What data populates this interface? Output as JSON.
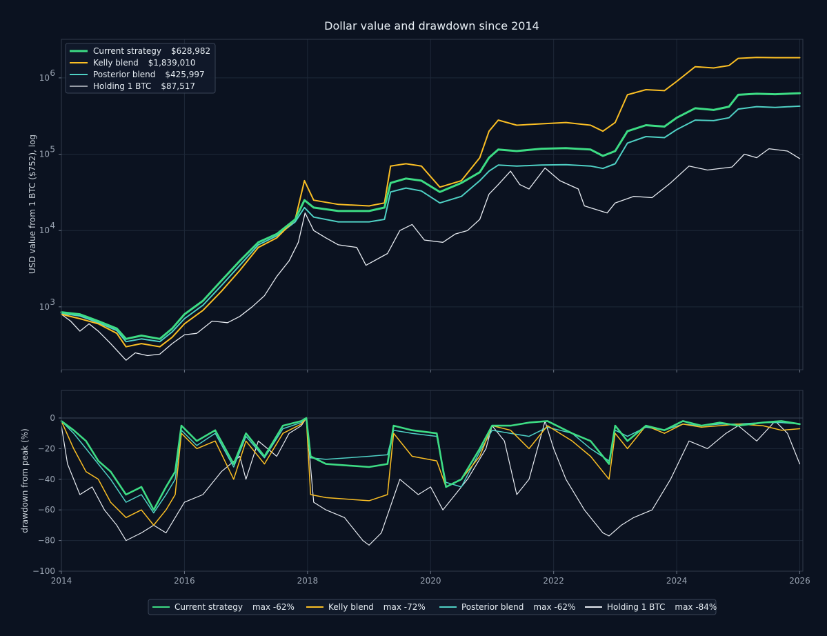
{
  "title": "Dollar value and drawdown since 2014",
  "colors": {
    "background": "#0b1220",
    "panel_border": "#30394a",
    "grid": "#1e2838",
    "current": "#3ddc84",
    "kelly": "#fbbf24",
    "posterior": "#4fd1c5",
    "hodl": "#e8ecf2"
  },
  "chart_data": [
    {
      "type": "line",
      "title": "Dollar value and drawdown since 2014",
      "ylabel": "USD value from 1 BTC ($752), log",
      "yscale": "log",
      "ylim": [
        150,
        3200000
      ],
      "xlim": [
        2014.0,
        2026.05
      ],
      "y_ticks": [
        {
          "value": 1000,
          "base": "10",
          "exp": "3"
        },
        {
          "value": 10000,
          "base": "10",
          "exp": "4"
        },
        {
          "value": 100000,
          "base": "10",
          "exp": "5"
        },
        {
          "value": 1000000,
          "base": "10",
          "exp": "6"
        }
      ],
      "grid": true,
      "legend_position": "top-left",
      "series": [
        {
          "key": "current",
          "name": "Current strategy",
          "final_value": "$628,982",
          "width": 3,
          "x": [
            2014.0,
            2014.3,
            2014.6,
            2014.9,
            2015.05,
            2015.3,
            2015.6,
            2015.8,
            2016.0,
            2016.3,
            2016.6,
            2016.9,
            2017.2,
            2017.5,
            2017.8,
            2017.95,
            2018.1,
            2018.5,
            2019.0,
            2019.25,
            2019.35,
            2019.6,
            2019.85,
            2020.15,
            2020.5,
            2020.8,
            2020.95,
            2021.1,
            2021.4,
            2021.8,
            2022.2,
            2022.6,
            2022.8,
            2023.0,
            2023.2,
            2023.5,
            2023.8,
            2024.0,
            2024.3,
            2024.6,
            2024.85,
            2025.0,
            2025.3,
            2025.6,
            2026.0
          ],
          "y": [
            850,
            800,
            650,
            520,
            380,
            420,
            380,
            520,
            800,
            1200,
            2200,
            4000,
            7000,
            9000,
            14000,
            25000,
            20000,
            18000,
            18000,
            20000,
            42000,
            48000,
            45000,
            32000,
            42000,
            58000,
            90000,
            115000,
            110000,
            118000,
            120000,
            115000,
            95000,
            110000,
            200000,
            240000,
            230000,
            300000,
            400000,
            380000,
            420000,
            600000,
            620000,
            610000,
            630000
          ]
        },
        {
          "key": "kelly",
          "name": "Kelly blend",
          "final_value": "$1,839,010",
          "width": 2,
          "x": [
            2014.0,
            2014.3,
            2014.6,
            2014.9,
            2015.05,
            2015.3,
            2015.6,
            2015.8,
            2016.0,
            2016.3,
            2016.6,
            2016.9,
            2017.2,
            2017.5,
            2017.8,
            2017.95,
            2018.1,
            2018.5,
            2019.0,
            2019.25,
            2019.35,
            2019.6,
            2019.85,
            2020.15,
            2020.5,
            2020.8,
            2020.95,
            2021.1,
            2021.4,
            2021.8,
            2022.2,
            2022.6,
            2022.8,
            2023.0,
            2023.2,
            2023.5,
            2023.8,
            2024.0,
            2024.3,
            2024.6,
            2024.85,
            2025.0,
            2025.3,
            2025.6,
            2026.0
          ],
          "y": [
            800,
            700,
            600,
            450,
            300,
            330,
            300,
            400,
            600,
            900,
            1600,
            3000,
            6000,
            8000,
            14000,
            45000,
            25000,
            22000,
            21000,
            23000,
            70000,
            75000,
            70000,
            37000,
            45000,
            90000,
            200000,
            280000,
            240000,
            250000,
            260000,
            240000,
            200000,
            260000,
            600000,
            700000,
            680000,
            900000,
            1400000,
            1350000,
            1450000,
            1800000,
            1850000,
            1840000,
            1840000
          ]
        },
        {
          "key": "posterior",
          "name": "Posterior blend",
          "final_value": "$425,997",
          "width": 2,
          "x": [
            2014.0,
            2014.3,
            2014.6,
            2014.9,
            2015.05,
            2015.3,
            2015.6,
            2015.8,
            2016.0,
            2016.3,
            2016.6,
            2016.9,
            2017.2,
            2017.5,
            2017.8,
            2017.95,
            2018.1,
            2018.5,
            2019.0,
            2019.25,
            2019.35,
            2019.6,
            2019.85,
            2020.15,
            2020.5,
            2020.8,
            2020.95,
            2021.1,
            2021.4,
            2021.8,
            2022.2,
            2022.6,
            2022.8,
            2023.0,
            2023.2,
            2023.5,
            2023.8,
            2024.0,
            2024.3,
            2024.6,
            2024.85,
            2025.0,
            2025.3,
            2025.6,
            2026.0
          ],
          "y": [
            820,
            760,
            620,
            490,
            350,
            380,
            350,
            470,
            700,
            1050,
            1900,
            3500,
            6500,
            8500,
            13000,
            20000,
            15000,
            13000,
            13000,
            14000,
            32000,
            36000,
            33000,
            23000,
            28000,
            45000,
            60000,
            72000,
            70000,
            72000,
            73000,
            70000,
            65000,
            75000,
            140000,
            170000,
            165000,
            210000,
            280000,
            275000,
            300000,
            390000,
            420000,
            410000,
            426000
          ]
        },
        {
          "key": "hodl",
          "name": "Holding 1 BTC",
          "final_value": "$87,517",
          "width": 1.3,
          "x": [
            2014.0,
            2014.15,
            2014.3,
            2014.45,
            2014.6,
            2014.8,
            2015.05,
            2015.2,
            2015.4,
            2015.6,
            2015.8,
            2016.0,
            2016.2,
            2016.45,
            2016.7,
            2016.9,
            2017.1,
            2017.3,
            2017.5,
            2017.7,
            2017.85,
            2017.96,
            2018.1,
            2018.3,
            2018.5,
            2018.8,
            2018.95,
            2019.3,
            2019.5,
            2019.7,
            2019.9,
            2020.2,
            2020.4,
            2020.6,
            2020.8,
            2020.95,
            2021.1,
            2021.3,
            2021.45,
            2021.6,
            2021.86,
            2022.1,
            2022.4,
            2022.5,
            2022.87,
            2023.0,
            2023.3,
            2023.6,
            2023.9,
            2024.2,
            2024.5,
            2024.9,
            2025.1,
            2025.3,
            2025.5,
            2025.8,
            2026.0
          ],
          "y": [
            800,
            650,
            480,
            600,
            480,
            330,
            200,
            250,
            230,
            240,
            330,
            430,
            450,
            650,
            620,
            750,
            1000,
            1400,
            2500,
            4000,
            7000,
            17000,
            10000,
            8000,
            6500,
            6000,
            3500,
            5000,
            10000,
            12000,
            7500,
            7000,
            9000,
            10000,
            14000,
            30000,
            40000,
            60000,
            40000,
            35000,
            66000,
            45000,
            35000,
            21000,
            17000,
            23000,
            28000,
            27000,
            42000,
            70000,
            62000,
            68000,
            100000,
            90000,
            118000,
            110000,
            87517
          ]
        }
      ]
    },
    {
      "type": "line",
      "ylabel": "drawdown from peak (%)",
      "ylim": [
        -100,
        18
      ],
      "xlim": [
        2014.0,
        2026.05
      ],
      "y_ticks": [
        0,
        -20,
        -40,
        -60,
        -80,
        -100
      ],
      "x_ticks": [
        "2014",
        "2016",
        "2018",
        "2020",
        "2022",
        "2024",
        "2026"
      ],
      "x_tick_values": [
        2014,
        2016,
        2018,
        2020,
        2022,
        2024,
        2026
      ],
      "grid": true,
      "legend_position": "bottom-center",
      "series": [
        {
          "key": "current",
          "name": "Current strategy",
          "max_label": "max -62%",
          "width": 2.6,
          "x": [
            2014.0,
            2014.2,
            2014.4,
            2014.6,
            2014.8,
            2015.05,
            2015.3,
            2015.5,
            2015.7,
            2015.85,
            2015.95,
            2016.2,
            2016.5,
            2016.8,
            2017.0,
            2017.3,
            2017.6,
            2017.9,
            2017.98,
            2018.05,
            2018.3,
            2019.0,
            2019.3,
            2019.4,
            2019.7,
            2020.1,
            2020.25,
            2020.5,
            2020.8,
            2021.0,
            2021.3,
            2021.6,
            2021.9,
            2022.3,
            2022.6,
            2022.9,
            2023.0,
            2023.2,
            2023.5,
            2023.8,
            2024.1,
            2024.4,
            2024.7,
            2025.0,
            2025.4,
            2025.7,
            2026.0
          ],
          "y": [
            -2,
            -8,
            -15,
            -28,
            -35,
            -50,
            -45,
            -60,
            -45,
            -35,
            -5,
            -15,
            -8,
            -30,
            -10,
            -25,
            -5,
            -2,
            0,
            -25,
            -30,
            -32,
            -30,
            -5,
            -8,
            -10,
            -45,
            -40,
            -20,
            -5,
            -5,
            -3,
            -2,
            -10,
            -15,
            -30,
            -5,
            -15,
            -5,
            -8,
            -2,
            -5,
            -3,
            -5,
            -3,
            -2,
            -4
          ]
        },
        {
          "key": "kelly",
          "name": "Kelly blend",
          "max_label": "max -72%",
          "width": 1.5,
          "x": [
            2014.0,
            2014.2,
            2014.4,
            2014.6,
            2014.8,
            2015.05,
            2015.3,
            2015.5,
            2015.7,
            2015.85,
            2015.95,
            2016.2,
            2016.5,
            2016.8,
            2017.0,
            2017.3,
            2017.6,
            2017.9,
            2017.98,
            2018.05,
            2018.3,
            2019.0,
            2019.3,
            2019.4,
            2019.7,
            2020.1,
            2020.25,
            2020.5,
            2020.8,
            2021.0,
            2021.3,
            2021.6,
            2021.9,
            2022.3,
            2022.6,
            2022.9,
            2023.0,
            2023.2,
            2023.5,
            2023.8,
            2024.1,
            2024.4,
            2024.7,
            2025.0,
            2025.4,
            2025.7,
            2026.0
          ],
          "y": [
            -2,
            -20,
            -35,
            -40,
            -55,
            -65,
            -60,
            -70,
            -60,
            -50,
            -10,
            -20,
            -15,
            -40,
            -15,
            -30,
            -10,
            -4,
            0,
            -50,
            -52,
            -54,
            -50,
            -10,
            -25,
            -28,
            -45,
            -40,
            -25,
            -5,
            -8,
            -20,
            -5,
            -15,
            -25,
            -40,
            -10,
            -20,
            -5,
            -10,
            -4,
            -6,
            -5,
            -4,
            -5,
            -8,
            -7
          ]
        },
        {
          "key": "posterior",
          "name": "Posterior blend",
          "max_label": "max -62%",
          "width": 1.5,
          "x": [
            2014.0,
            2014.2,
            2014.4,
            2014.6,
            2014.8,
            2015.05,
            2015.3,
            2015.5,
            2015.7,
            2015.85,
            2015.95,
            2016.2,
            2016.5,
            2016.8,
            2017.0,
            2017.3,
            2017.6,
            2017.9,
            2017.98,
            2018.05,
            2018.3,
            2019.0,
            2019.3,
            2019.4,
            2019.7,
            2020.1,
            2020.25,
            2020.5,
            2020.8,
            2021.0,
            2021.3,
            2021.6,
            2021.9,
            2022.3,
            2022.6,
            2022.9,
            2023.0,
            2023.2,
            2023.5,
            2023.8,
            2024.1,
            2024.4,
            2024.7,
            2025.0,
            2025.4,
            2025.7,
            2026.0
          ],
          "y": [
            -2,
            -10,
            -20,
            -30,
            -40,
            -55,
            -50,
            -62,
            -50,
            -40,
            -8,
            -18,
            -10,
            -32,
            -12,
            -26,
            -7,
            -3,
            0,
            -26,
            -27,
            -25,
            -24,
            -8,
            -10,
            -12,
            -42,
            -45,
            -22,
            -8,
            -10,
            -12,
            -6,
            -10,
            -20,
            -28,
            -8,
            -12,
            -6,
            -8,
            -4,
            -5,
            -4,
            -4,
            -3,
            -3,
            -4
          ]
        },
        {
          "key": "hodl",
          "name": "Holding 1 BTC",
          "max_label": "max -84%",
          "width": 1.2,
          "x": [
            2014.0,
            2014.1,
            2014.3,
            2014.5,
            2014.7,
            2014.9,
            2015.05,
            2015.3,
            2015.5,
            2015.7,
            2015.85,
            2016.0,
            2016.3,
            2016.6,
            2016.9,
            2017.0,
            2017.2,
            2017.5,
            2017.7,
            2017.9,
            2017.98,
            2018.1,
            2018.3,
            2018.6,
            2018.9,
            2019.0,
            2019.2,
            2019.5,
            2019.8,
            2020.0,
            2020.2,
            2020.4,
            2020.6,
            2020.9,
            2021.0,
            2021.2,
            2021.4,
            2021.6,
            2021.86,
            2022.0,
            2022.2,
            2022.5,
            2022.8,
            2022.9,
            2023.1,
            2023.3,
            2023.6,
            2023.9,
            2024.2,
            2024.5,
            2024.8,
            2025.0,
            2025.3,
            2025.6,
            2025.8,
            2026.0
          ],
          "y": [
            -5,
            -30,
            -50,
            -45,
            -60,
            -70,
            -80,
            -75,
            -70,
            -75,
            -65,
            -55,
            -50,
            -35,
            -25,
            -40,
            -15,
            -25,
            -10,
            -5,
            0,
            -55,
            -60,
            -65,
            -80,
            -83,
            -75,
            -40,
            -50,
            -45,
            -60,
            -50,
            -40,
            -20,
            -5,
            -15,
            -50,
            -40,
            -2,
            -20,
            -40,
            -60,
            -75,
            -77,
            -70,
            -65,
            -60,
            -40,
            -15,
            -20,
            -10,
            -5,
            -15,
            -2,
            -10,
            -30
          ]
        }
      ]
    }
  ]
}
